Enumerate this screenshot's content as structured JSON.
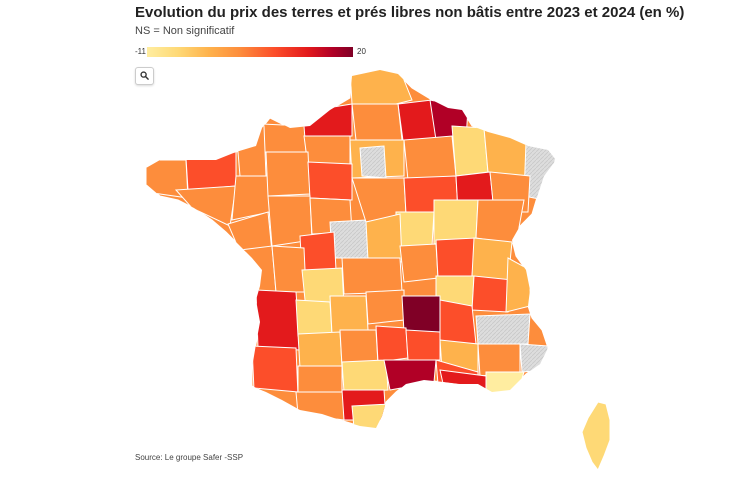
{
  "title": "Evolution du prix des terres et prés libres non bâtis entre 2023 et 2024 (en %)",
  "subtitle": "NS = Non significatif",
  "legend": {
    "min_label": "-11",
    "max_label": "20",
    "scale": [
      "#ffeda0",
      "#fed976",
      "#feb24c",
      "#fd8d3c",
      "#fc4e2a",
      "#e31a1c",
      "#b10026",
      "#800026"
    ],
    "ns_color": "#dddddd"
  },
  "search": {
    "icon": "search-icon"
  },
  "source": "Source: Le groupe Safer -SSP",
  "map": {
    "subject": "France departments choropleth",
    "ns_fill": "#dddddd"
  }
}
